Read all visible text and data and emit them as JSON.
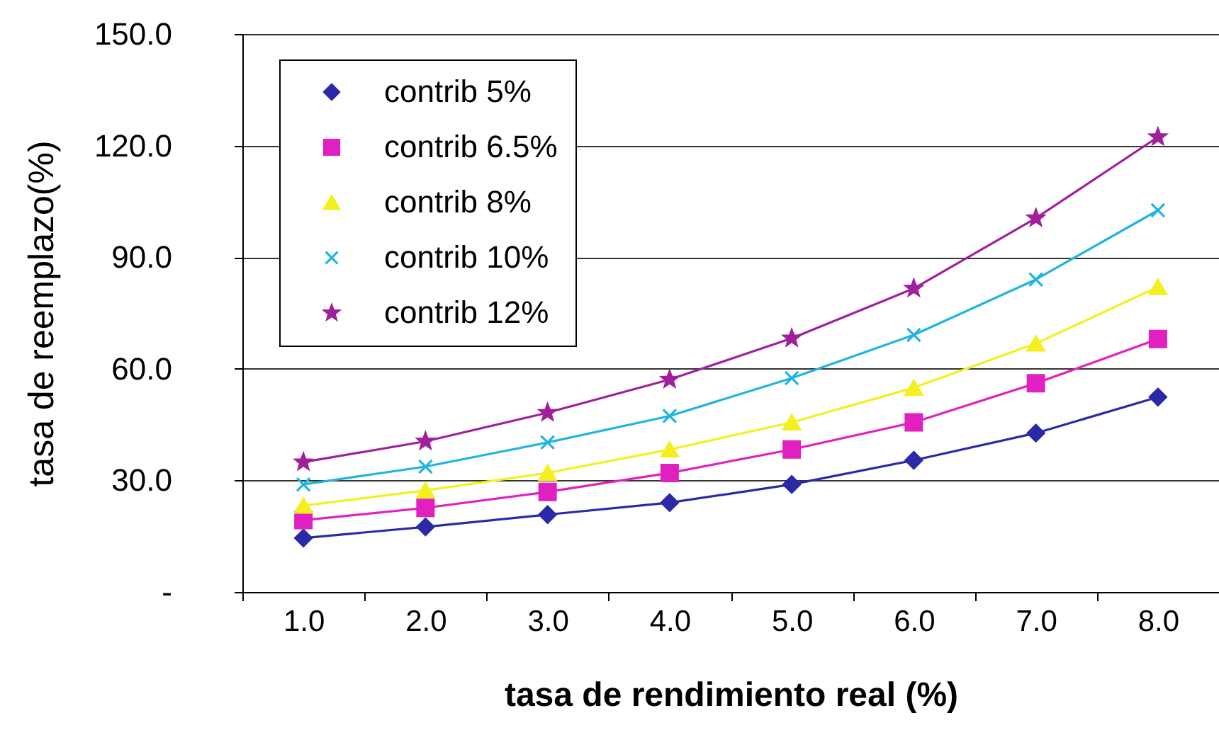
{
  "chart_data": {
    "type": "line",
    "xlabel": "tasa de rendimiento real (%)",
    "ylabel": "tasa de reemplazo(%)",
    "categories": [
      "1.0",
      "2.0",
      "3.0",
      "4.0",
      "5.0",
      "6.0",
      "7.0",
      "8.0"
    ],
    "series": [
      {
        "name": "contrib 5%",
        "color": "#2a2aa8",
        "marker": "diamond",
        "values": [
          14.5,
          17.5,
          20.8,
          24.0,
          28.9,
          35.4,
          42.7,
          52.4
        ]
      },
      {
        "name": "contrib 6.5%",
        "color": "#e020c0",
        "marker": "square",
        "values": [
          19.3,
          22.6,
          26.9,
          32.0,
          38.3,
          45.6,
          56.1,
          68.0
        ]
      },
      {
        "name": "contrib 8%",
        "color": "#f4f020",
        "marker": "triangle",
        "values": [
          23.2,
          27.3,
          32.0,
          38.3,
          45.6,
          54.9,
          66.8,
          82.0
        ]
      },
      {
        "name": "contrib 10%",
        "color": "#20b4e0",
        "marker": "cross",
        "values": [
          28.9,
          33.7,
          40.2,
          47.3,
          57.5,
          69.1,
          84.0,
          102.6
        ]
      },
      {
        "name": "contrib 12%",
        "color": "#a0209c",
        "marker": "star",
        "values": [
          34.9,
          40.5,
          48.2,
          57.1,
          68.2,
          81.6,
          100.5,
          122.3
        ]
      }
    ],
    "ylim": [
      0,
      150
    ],
    "yticks": [
      {
        "value": 0,
        "label": "-"
      },
      {
        "value": 30,
        "label": "30.0"
      },
      {
        "value": 60,
        "label": "60.0"
      },
      {
        "value": 90,
        "label": "90.0"
      },
      {
        "value": 120,
        "label": "120.0"
      },
      {
        "value": 150,
        "label": "150.0"
      }
    ],
    "grid": "y",
    "legend": "top left"
  }
}
